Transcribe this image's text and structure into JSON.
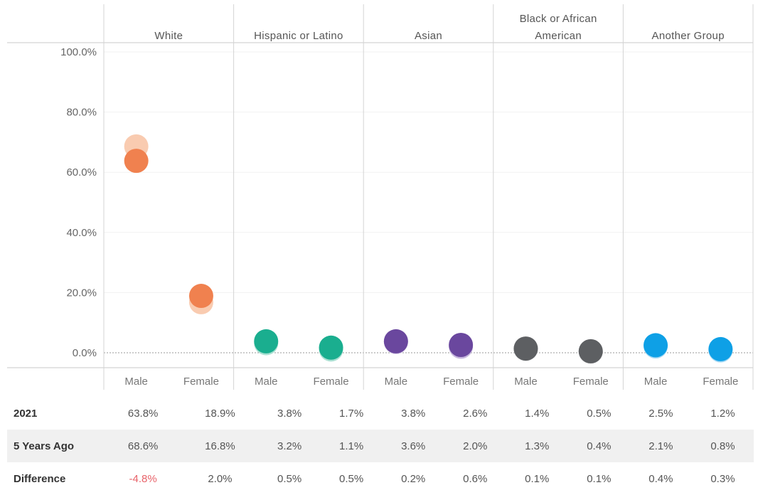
{
  "chart_data": {
    "type": "scatter",
    "y_axis": {
      "min": 0,
      "max": 100,
      "ticks": [
        "100.0%",
        "80.0%",
        "60.0%",
        "40.0%",
        "20.0%",
        "0.0%"
      ],
      "grid": true
    },
    "groups": [
      {
        "name": "White",
        "color": "#F0814F",
        "light_color": "#F9CBB0"
      },
      {
        "name": "Hispanic or Latino",
        "color": "#1AAE8F",
        "light_color": "#A9E0D2"
      },
      {
        "name": "Asian",
        "color": "#6A479E",
        "light_color": "#C7B7DE"
      },
      {
        "name": "Black or African American",
        "name_lines": [
          "Black or African",
          "American"
        ],
        "color": "#5D5F62",
        "light_color": "#C4C5C7"
      },
      {
        "name": "Another Group",
        "color": "#0EA0E6",
        "light_color": "#A6D9F4"
      }
    ],
    "sub_categories": [
      "Male",
      "Female"
    ],
    "series": [
      {
        "name": "2021",
        "values": [
          63.8,
          18.9,
          3.8,
          1.7,
          3.8,
          2.6,
          1.4,
          0.5,
          2.5,
          1.2
        ]
      },
      {
        "name": "5 Years Ago",
        "values": [
          68.6,
          16.8,
          3.2,
          1.1,
          3.6,
          2.0,
          1.3,
          0.4,
          2.1,
          0.8
        ]
      }
    ]
  },
  "table": {
    "rows": [
      {
        "label": "2021",
        "cells": [
          "63.8%",
          "18.9%",
          "3.8%",
          "1.7%",
          "3.8%",
          "2.6%",
          "1.4%",
          "0.5%",
          "2.5%",
          "1.2%"
        ]
      },
      {
        "label": "5 Years Ago",
        "cells": [
          "68.6%",
          "16.8%",
          "3.2%",
          "1.1%",
          "3.6%",
          "2.0%",
          "1.3%",
          "0.4%",
          "2.1%",
          "0.8%"
        ]
      },
      {
        "label": "Difference",
        "cells": [
          "-4.8%",
          "2.0%",
          "0.5%",
          "0.5%",
          "0.2%",
          "0.6%",
          "0.1%",
          "0.1%",
          "0.4%",
          "0.3%"
        ]
      }
    ],
    "negative_color": "#E8636A"
  }
}
